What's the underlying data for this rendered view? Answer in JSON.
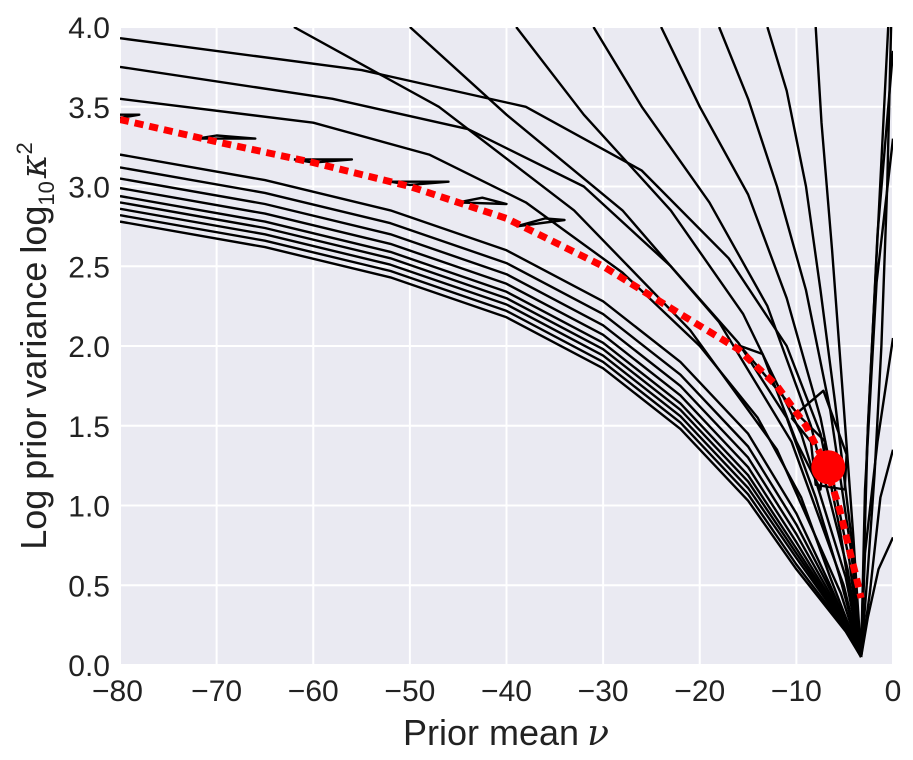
{
  "chart_data": {
    "type": "contour",
    "xlabel": "Prior mean",
    "xlabel_symbol": "ν",
    "ylabel": "Log prior variance",
    "ylabel_symbol": "log",
    "ylabel_subscript": "10",
    "ylabel_var": "κ",
    "ylabel_sup": "2",
    "xlim": [
      -80,
      0
    ],
    "ylim": [
      0.0,
      4.0
    ],
    "xticks": [
      -80,
      -70,
      -60,
      -50,
      -40,
      -30,
      -20,
      -10,
      0
    ],
    "xtick_labels": [
      "−80",
      "−70",
      "−60",
      "−50",
      "−40",
      "−30",
      "−20",
      "−10",
      "0"
    ],
    "yticks": [
      0.0,
      0.5,
      1.0,
      1.5,
      2.0,
      2.5,
      3.0,
      3.5,
      4.0
    ],
    "ytick_labels": [
      "0.0",
      "0.5",
      "1.0",
      "1.5",
      "2.0",
      "2.5",
      "3.0",
      "3.5",
      "4.0"
    ],
    "grid": true,
    "background": "#eaeaf2",
    "contour_color": "#000000",
    "ridge_color": "#ff0000",
    "marker_color": "#ff0000",
    "contours": [
      [
        [
          -3.3,
          0.05
        ],
        [
          -2.6,
          0.6
        ],
        [
          -1.9,
          1.2
        ],
        [
          -1.2,
          2.0
        ],
        [
          -0.6,
          3.0
        ],
        [
          -0.2,
          4.0
        ]
      ],
      [
        [
          -3.3,
          0.05
        ],
        [
          -2.4,
          0.45
        ],
        [
          -1.3,
          1.05
        ],
        [
          0,
          1.35
        ]
      ],
      [
        [
          -3.3,
          0.05
        ],
        [
          -2.6,
          0.3
        ],
        [
          -1.5,
          0.6
        ],
        [
          0,
          0.8
        ]
      ],
      [
        [
          -3.3,
          0.05
        ],
        [
          -4.1,
          0.8
        ],
        [
          -5.2,
          1.7
        ],
        [
          -6.3,
          2.6
        ],
        [
          -7.4,
          3.4
        ],
        [
          -8.0,
          4.0
        ]
      ],
      [
        [
          -3.3,
          0.05
        ],
        [
          -4.2,
          0.75
        ],
        [
          -6.0,
          1.65
        ],
        [
          -7.5,
          2.35
        ],
        [
          -9.0,
          3.0
        ],
        [
          -11.0,
          3.6
        ],
        [
          -13.0,
          4.0
        ]
      ],
      [
        [
          -3.3,
          0.05
        ],
        [
          -4.3,
          0.7
        ],
        [
          -6.5,
          1.6
        ],
        [
          -9.0,
          2.35
        ],
        [
          -12.0,
          3.0
        ],
        [
          -15.0,
          3.55
        ],
        [
          -18.0,
          4.0
        ]
      ],
      [
        [
          -3.3,
          0.05
        ],
        [
          -4.5,
          0.65
        ],
        [
          -7.5,
          1.55
        ],
        [
          -11.0,
          2.3
        ],
        [
          -15.0,
          2.95
        ],
        [
          -20.0,
          3.5
        ],
        [
          -24.0,
          4.0
        ]
      ],
      [
        [
          -3.3,
          0.05
        ],
        [
          -4.7,
          0.6
        ],
        [
          -8.5,
          1.5
        ],
        [
          -13.0,
          2.25
        ],
        [
          -19.0,
          2.9
        ],
        [
          -26.0,
          3.5
        ],
        [
          -31.0,
          4.0
        ]
      ],
      [
        [
          -3.3,
          0.05
        ],
        [
          -4.9,
          0.55
        ],
        [
          -9.5,
          1.45
        ],
        [
          -15.5,
          2.2
        ],
        [
          -23.0,
          2.85
        ],
        [
          -32.0,
          3.45
        ],
        [
          -39.0,
          4.0
        ]
      ],
      [
        [
          -3.3,
          0.05
        ],
        [
          -5.1,
          0.5
        ],
        [
          -10.5,
          1.4
        ],
        [
          -18.0,
          2.15
        ],
        [
          -28.0,
          2.85
        ],
        [
          -40.0,
          3.45
        ],
        [
          -50.0,
          4.0
        ]
      ],
      [
        [
          -3.3,
          0.05
        ],
        [
          -5.4,
          0.45
        ],
        [
          -12.0,
          1.35
        ],
        [
          -21.0,
          2.1
        ],
        [
          -33.0,
          2.85
        ],
        [
          -47.0,
          3.5
        ],
        [
          -62.0,
          4.0
        ]
      ],
      [
        [
          -0.5,
          4.0
        ],
        [
          -1.5,
          2.8
        ],
        [
          -2.6,
          1.5
        ],
        [
          -3.3,
          0.05
        ]
      ],
      [
        [
          0,
          3.85
        ],
        [
          -1.6,
          2.7
        ],
        [
          -2.7,
          1.35
        ],
        [
          -3.3,
          0.05
        ]
      ],
      [
        [
          0,
          3.3
        ],
        [
          -1.7,
          2.4
        ],
        [
          -2.9,
          1.1
        ],
        [
          -3.3,
          0.05
        ]
      ],
      [
        [
          0,
          2.05
        ],
        [
          -1.6,
          1.4
        ],
        [
          -2.9,
          0.7
        ],
        [
          -3.3,
          0.05
        ]
      ],
      [
        [
          -80,
          3.93
        ],
        [
          -55,
          3.73
        ],
        [
          -38,
          3.5
        ],
        [
          -26,
          3.1
        ],
        [
          -17,
          2.55
        ],
        [
          -11,
          2.0
        ],
        [
          -7.5,
          1.45
        ],
        [
          -5.5,
          0.85
        ],
        [
          -4.2,
          0.35
        ],
        [
          -3.3,
          0.05
        ]
      ],
      [
        [
          -80,
          3.75
        ],
        [
          -58,
          3.55
        ],
        [
          -44,
          3.36
        ],
        [
          -32,
          3.0
        ],
        [
          -23,
          2.5
        ],
        [
          -16,
          2.02
        ],
        [
          -11,
          1.55
        ],
        [
          -8.0,
          1.05
        ],
        [
          -5.5,
          0.55
        ],
        [
          -3.3,
          0.05
        ]
      ],
      [
        [
          -80,
          3.55
        ],
        [
          -60,
          3.4
        ],
        [
          -48,
          3.2
        ],
        [
          -38,
          2.9
        ],
        [
          -28,
          2.46
        ],
        [
          -20,
          2.0
        ],
        [
          -14,
          1.55
        ],
        [
          -9.5,
          1.05
        ],
        [
          -6.5,
          0.55
        ],
        [
          -3.3,
          0.05
        ]
      ],
      [
        [
          -80,
          3.2
        ],
        [
          -65,
          3.04
        ],
        [
          -52,
          2.85
        ],
        [
          -40,
          2.6
        ],
        [
          -30,
          2.28
        ],
        [
          -22,
          1.9
        ],
        [
          -15,
          1.45
        ],
        [
          -10,
          0.95
        ],
        [
          -6.5,
          0.5
        ],
        [
          -3.3,
          0.05
        ]
      ],
      [
        [
          -80,
          3.12
        ],
        [
          -65,
          2.96
        ],
        [
          -52,
          2.77
        ],
        [
          -40,
          2.52
        ],
        [
          -30,
          2.2
        ],
        [
          -22,
          1.82
        ],
        [
          -15,
          1.37
        ],
        [
          -10,
          0.88
        ],
        [
          -6.3,
          0.45
        ],
        [
          -3.3,
          0.05
        ]
      ],
      [
        [
          -80,
          3.05
        ],
        [
          -65,
          2.89
        ],
        [
          -52,
          2.7
        ],
        [
          -40,
          2.45
        ],
        [
          -30,
          2.13
        ],
        [
          -22,
          1.75
        ],
        [
          -15,
          1.3
        ],
        [
          -10,
          0.82
        ],
        [
          -6.1,
          0.4
        ],
        [
          -3.3,
          0.05
        ]
      ],
      [
        [
          -80,
          2.99
        ],
        [
          -65,
          2.83
        ],
        [
          -52,
          2.64
        ],
        [
          -40,
          2.39
        ],
        [
          -30,
          2.07
        ],
        [
          -22,
          1.69
        ],
        [
          -15,
          1.24
        ],
        [
          -10,
          0.77
        ],
        [
          -5.9,
          0.36
        ],
        [
          -3.3,
          0.05
        ]
      ],
      [
        [
          -80,
          2.94
        ],
        [
          -65,
          2.78
        ],
        [
          -52,
          2.59
        ],
        [
          -40,
          2.34
        ],
        [
          -30,
          2.02
        ],
        [
          -22,
          1.64
        ],
        [
          -15,
          1.19
        ],
        [
          -10,
          0.73
        ],
        [
          -5.7,
          0.33
        ],
        [
          -3.3,
          0.05
        ]
      ],
      [
        [
          -80,
          2.9
        ],
        [
          -65,
          2.74
        ],
        [
          -52,
          2.55
        ],
        [
          -40,
          2.3
        ],
        [
          -30,
          1.98
        ],
        [
          -22,
          1.6
        ],
        [
          -15,
          1.15
        ],
        [
          -10,
          0.7
        ],
        [
          -5.5,
          0.3
        ],
        [
          -3.3,
          0.05
        ]
      ],
      [
        [
          -80,
          2.86
        ],
        [
          -65,
          2.7
        ],
        [
          -52,
          2.51
        ],
        [
          -40,
          2.26
        ],
        [
          -30,
          1.94
        ],
        [
          -22,
          1.56
        ],
        [
          -15,
          1.11
        ],
        [
          -10,
          0.67
        ],
        [
          -5.3,
          0.27
        ],
        [
          -3.3,
          0.05
        ]
      ],
      [
        [
          -80,
          2.82
        ],
        [
          -65,
          2.66
        ],
        [
          -52,
          2.47
        ],
        [
          -40,
          2.22
        ],
        [
          -30,
          1.9
        ],
        [
          -22,
          1.52
        ],
        [
          -15,
          1.07
        ],
        [
          -10,
          0.63
        ],
        [
          -5.1,
          0.24
        ],
        [
          -3.3,
          0.05
        ]
      ],
      [
        [
          -80,
          2.78
        ],
        [
          -65,
          2.62
        ],
        [
          -52,
          2.43
        ],
        [
          -40,
          2.18
        ],
        [
          -30,
          1.86
        ],
        [
          -22,
          1.48
        ],
        [
          -15,
          1.03
        ],
        [
          -10,
          0.6
        ],
        [
          -4.9,
          0.21
        ],
        [
          -3.3,
          0.05
        ]
      ],
      [
        [
          -80,
          3.45
        ],
        [
          -78,
          3.45
        ],
        [
          -80,
          3.43
        ]
      ],
      [
        [
          -72,
          3.3
        ],
        [
          -66,
          3.3
        ],
        [
          -70,
          3.32
        ],
        [
          -72,
          3.3
        ]
      ],
      [
        [
          -62,
          3.17
        ],
        [
          -56,
          3.17
        ],
        [
          -60,
          3.15
        ],
        [
          -62,
          3.17
        ]
      ],
      [
        [
          -52,
          3.03
        ],
        [
          -46,
          3.03
        ],
        [
          -50,
          3.01
        ],
        [
          -52,
          3.03
        ]
      ],
      [
        [
          -45,
          2.9
        ],
        [
          -42.5,
          2.93
        ],
        [
          -40,
          2.89
        ],
        [
          -45,
          2.9
        ]
      ],
      [
        [
          -39,
          2.75
        ],
        [
          -36,
          2.8
        ],
        [
          -34,
          2.79
        ],
        [
          -39,
          2.75
        ]
      ],
      [
        [
          -15.8,
          2.0
        ],
        [
          -13.5,
          1.95
        ],
        [
          -10,
          1.4
        ],
        [
          -7.5,
          1.1
        ],
        [
          -7,
          1.4
        ],
        [
          -9.5,
          1.55
        ],
        [
          -15.8,
          2.0
        ]
      ],
      [
        [
          -10.5,
          1.55
        ],
        [
          -8.5,
          1.4
        ],
        [
          -8.0,
          1.13
        ],
        [
          -5.0,
          1.1
        ],
        [
          -4.8,
          1.32
        ],
        [
          -7.2,
          1.72
        ],
        [
          -10.5,
          1.55
        ]
      ]
    ],
    "ridge": {
      "x": [
        -80,
        -70,
        -60,
        -50,
        -40,
        -30,
        -22,
        -16,
        -12,
        -9,
        -7,
        -5.5,
        -4.5,
        -3.8,
        -3.3
      ],
      "y": [
        3.42,
        3.28,
        3.15,
        3.0,
        2.8,
        2.5,
        2.2,
        1.98,
        1.75,
        1.5,
        1.26,
        0.97,
        0.72,
        0.55,
        0.42
      ]
    },
    "point": {
      "x": -6.7,
      "y": 1.24
    }
  }
}
